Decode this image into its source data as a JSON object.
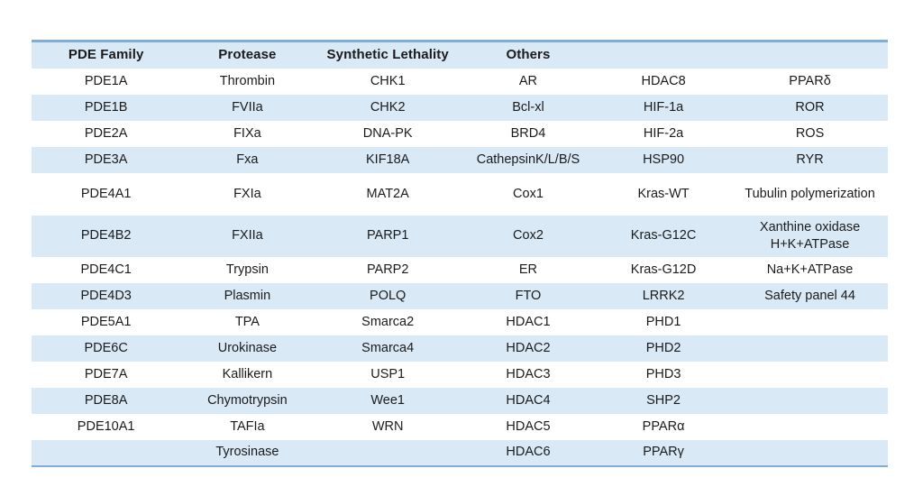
{
  "theme": {
    "band_color": "#d9e9f6",
    "rule_color": "#7fadd3",
    "text_color": "#1b1b1b",
    "background_color": "#ffffff"
  },
  "table": {
    "headers": [
      "PDE Family",
      "Protease",
      "Synthetic Lethality",
      "Others",
      "",
      ""
    ],
    "rows": [
      [
        "PDE1A",
        "Thrombin",
        "CHK1",
        "AR",
        "HDAC8",
        "PPARδ"
      ],
      [
        "PDE1B",
        "FVIIa",
        "CHK2",
        "Bcl-xl",
        "HIF-1a",
        "ROR"
      ],
      [
        "PDE2A",
        "FIXa",
        "DNA-PK",
        "BRD4",
        "HIF-2a",
        "ROS"
      ],
      [
        "PDE3A",
        "Fxa",
        "KIF18A",
        "CathepsinK/L/B/S",
        "HSP90",
        "RYR"
      ],
      [
        "PDE4A1",
        "FXIa",
        "MAT2A",
        "Cox1",
        "Kras-WT",
        "Tubulin polymerization"
      ],
      [
        "PDE4B2",
        "FXIIa",
        "PARP1",
        "Cox2",
        "Kras-G12C",
        "Xanthine oxidase\nH+K+ATPase"
      ],
      [
        "PDE4C1",
        "Trypsin",
        "PARP2",
        "ER",
        "Kras-G12D",
        "Na+K+ATPase"
      ],
      [
        "PDE4D3",
        "Plasmin",
        "POLQ",
        "FTO",
        "LRRK2",
        "Safety panel 44"
      ],
      [
        "PDE5A1",
        "TPA",
        "Smarca2",
        "HDAC1",
        "PHD1",
        ""
      ],
      [
        "PDE6C",
        "Urokinase",
        "Smarca4",
        "HDAC2",
        "PHD2",
        ""
      ],
      [
        "PDE7A",
        "Kallikern",
        "USP1",
        "HDAC3",
        "PHD3",
        ""
      ],
      [
        "PDE8A",
        "Chymotrypsin",
        "Wee1",
        "HDAC4",
        "SHP2",
        ""
      ],
      [
        "PDE10A1",
        "TAFIa",
        "WRN",
        "HDAC5",
        "PPARα",
        ""
      ],
      [
        "",
        "Tyrosinase",
        "",
        "HDAC6",
        "PPARγ",
        ""
      ]
    ],
    "column_width_percents": [
      17.4,
      15.6,
      17.2,
      15.6,
      16.0,
      18.2
    ]
  }
}
